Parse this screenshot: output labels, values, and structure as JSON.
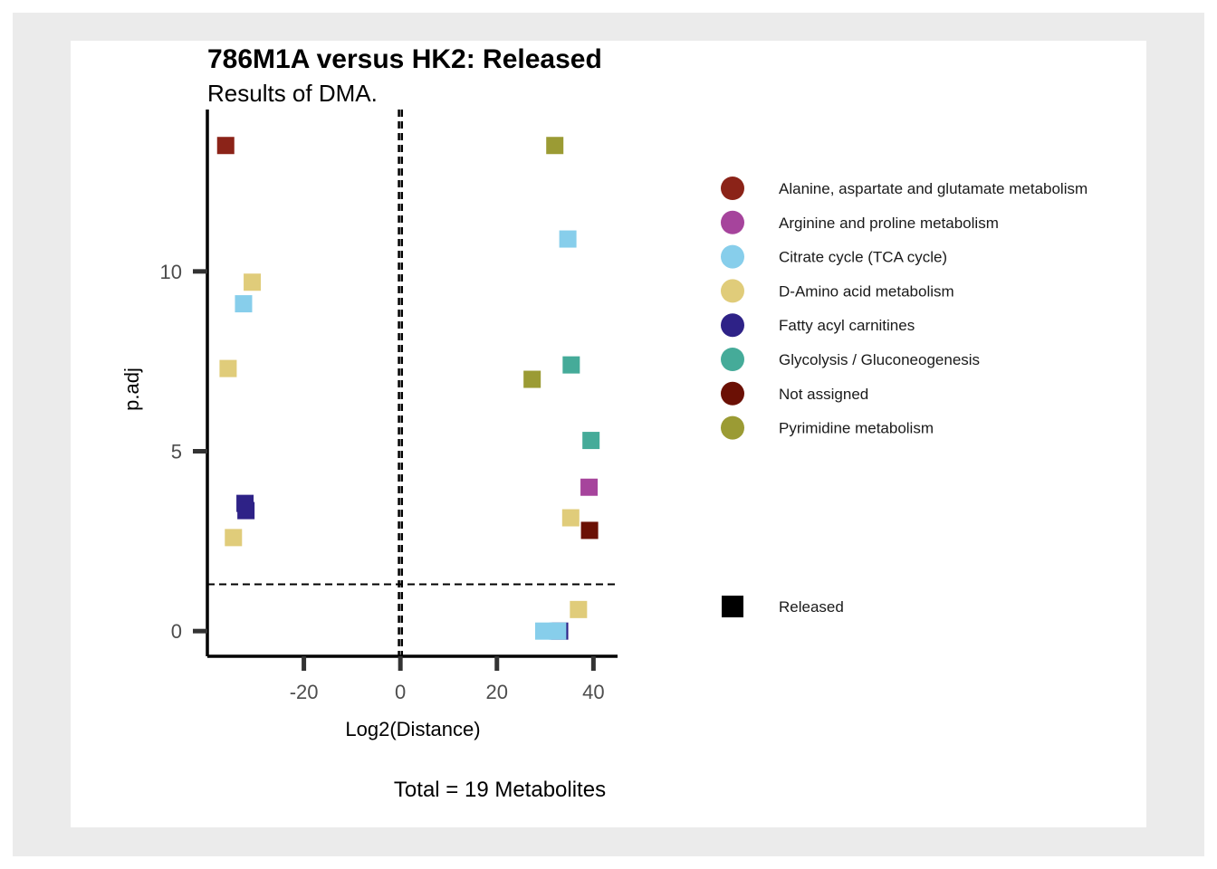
{
  "chart_data": {
    "type": "scatter",
    "title": "786M1A versus HK2: Released",
    "subtitle": "Results of DMA.",
    "xlabel": "Log2(Distance)",
    "ylabel": "p.adj",
    "caption": "Total = 19 Metabolites",
    "xlim": [
      -40,
      45
    ],
    "ylim": [
      -0.7,
      14.5
    ],
    "x_ticks": [
      -20,
      0,
      20,
      40
    ],
    "y_ticks": [
      0,
      5,
      10
    ],
    "x_tick_labels": [
      "-20",
      "0",
      "20",
      "40"
    ],
    "y_tick_labels": [
      "0",
      "5",
      "10"
    ],
    "thresholds": {
      "x_lines": [
        -0.3,
        0.3
      ],
      "y_line": 1.3
    },
    "grid": false,
    "legend_position": "right",
    "groups": [
      {
        "name": "Alanine, aspartate and glutamate metabolism",
        "color": "#8b2318"
      },
      {
        "name": "Arginine and proline metabolism",
        "color": "#a6449c"
      },
      {
        "name": "Citrate cycle (TCA cycle)",
        "color": "#87ceeb"
      },
      {
        "name": "D-Amino acid metabolism",
        "color": "#e0cc7a"
      },
      {
        "name": "Fatty acyl carnitines",
        "color": "#2e2287"
      },
      {
        "name": "Glycolysis / Gluconeogenesis",
        "color": "#45ab99"
      },
      {
        "name": "Not assigned",
        "color": "#6b1005"
      },
      {
        "name": "Pyrimidine metabolism",
        "color": "#9b9b34"
      }
    ],
    "shape_legend": [
      {
        "name": "Released",
        "shape": "square"
      }
    ],
    "points": [
      {
        "x": -36.2,
        "y": 13.5,
        "group": "Alanine, aspartate and glutamate metabolism"
      },
      {
        "x": 32.0,
        "y": 13.5,
        "group": "Pyrimidine metabolism"
      },
      {
        "x": 34.7,
        "y": 10.9,
        "group": "Citrate cycle (TCA cycle)"
      },
      {
        "x": -30.7,
        "y": 9.7,
        "group": "D-Amino acid metabolism"
      },
      {
        "x": -32.5,
        "y": 9.1,
        "group": "Citrate cycle (TCA cycle)"
      },
      {
        "x": -35.7,
        "y": 7.3,
        "group": "D-Amino acid metabolism"
      },
      {
        "x": 35.4,
        "y": 7.4,
        "group": "Glycolysis / Gluconeogenesis"
      },
      {
        "x": 27.3,
        "y": 7.0,
        "group": "Pyrimidine metabolism"
      },
      {
        "x": 39.5,
        "y": 5.3,
        "group": "Glycolysis / Gluconeogenesis"
      },
      {
        "x": 39.1,
        "y": 4.0,
        "group": "Arginine and proline metabolism"
      },
      {
        "x": -32.2,
        "y": 3.55,
        "group": "Fatty acyl carnitines"
      },
      {
        "x": -32.0,
        "y": 3.35,
        "group": "Fatty acyl carnitines"
      },
      {
        "x": 35.3,
        "y": 3.15,
        "group": "D-Amino acid metabolism"
      },
      {
        "x": 39.2,
        "y": 2.8,
        "group": "Not assigned"
      },
      {
        "x": -34.6,
        "y": 2.6,
        "group": "D-Amino acid metabolism"
      },
      {
        "x": 36.9,
        "y": 0.6,
        "group": "D-Amino acid metabolism"
      },
      {
        "x": 33.0,
        "y": 0.0,
        "group": "Fatty acyl carnitines"
      },
      {
        "x": 29.7,
        "y": 0.0,
        "group": "Citrate cycle (TCA cycle)"
      },
      {
        "x": 32.6,
        "y": 0.0,
        "group": "Citrate cycle (TCA cycle)"
      }
    ]
  }
}
